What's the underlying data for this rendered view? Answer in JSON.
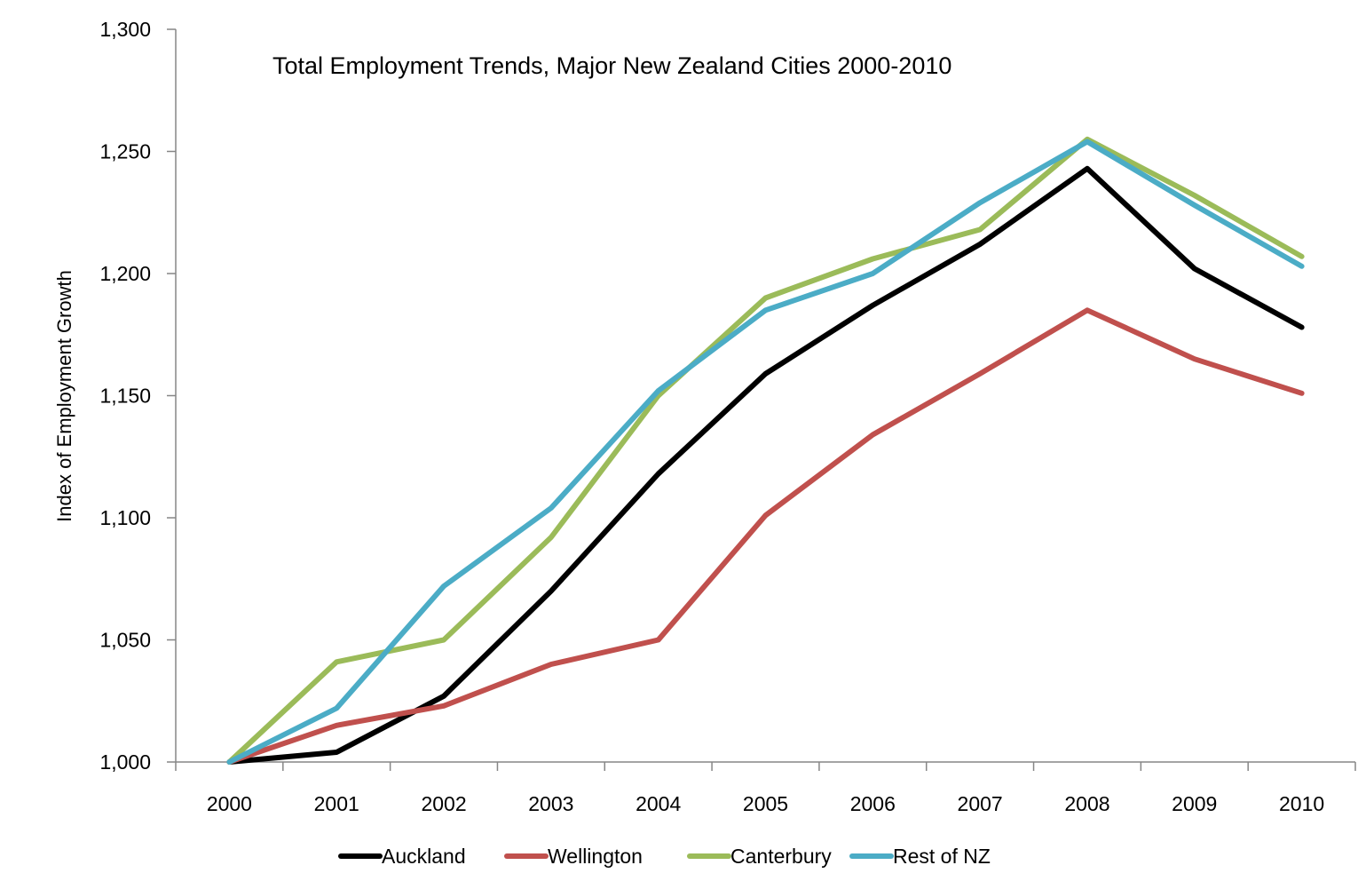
{
  "chart_data": {
    "type": "line",
    "title": "Total Employment Trends, Major New Zealand Cities 2000-2010",
    "xlabel": "",
    "ylabel": "Index of Employment Growth",
    "ylim": [
      1000,
      1300
    ],
    "yticks": [
      1000,
      1050,
      1100,
      1150,
      1200,
      1250,
      1300
    ],
    "ytick_labels": [
      "1,000",
      "1,050",
      "1,100",
      "1,150",
      "1,200",
      "1,250",
      "1,300"
    ],
    "categories": [
      "2000",
      "2001",
      "2002",
      "2003",
      "2004",
      "2005",
      "2006",
      "2007",
      "2008",
      "2009",
      "2010"
    ],
    "grid": false,
    "legend_position": "bottom",
    "series": [
      {
        "name": "Auckland",
        "color": "#000000",
        "values": [
          1000,
          1004,
          1027,
          1070,
          1118,
          1159,
          1187,
          1212,
          1243,
          1202,
          1178
        ]
      },
      {
        "name": "Wellington",
        "color": "#c0504d",
        "values": [
          1000,
          1015,
          1023,
          1040,
          1050,
          1101,
          1134,
          1159,
          1185,
          1165,
          1151
        ]
      },
      {
        "name": "Canterbury",
        "color": "#9bbb59",
        "values": [
          1000,
          1041,
          1050,
          1092,
          1150,
          1190,
          1206,
          1218,
          1255,
          1232,
          1207
        ]
      },
      {
        "name": "Rest of NZ",
        "color": "#4bacc6",
        "values": [
          1000,
          1022,
          1072,
          1104,
          1152,
          1185,
          1200,
          1229,
          1254,
          1228,
          1203
        ]
      }
    ]
  }
}
